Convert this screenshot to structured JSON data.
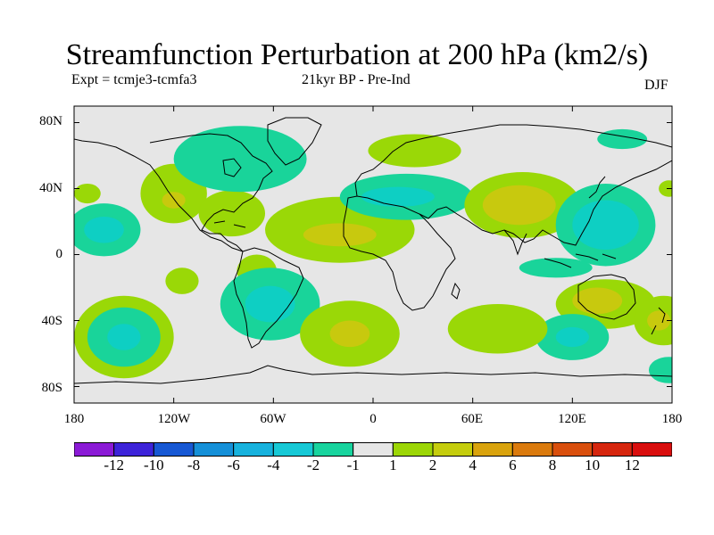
{
  "title": "Streamfunction Perturbation at 200 hPa (km2/s)",
  "subtitle_left": "Expt = tcmje3-tcmfa3",
  "subtitle_center": "21kyr BP - Pre-Ind",
  "season": "DJF",
  "colors": {
    "ocean_background": "#e6e6e6",
    "coastline": "#000000",
    "positive_2_4": "#9ad807",
    "positive_4_6": "#c8c90e",
    "negative_2_4": "#0ecfc3",
    "negative_1_2": "#19d49a"
  },
  "map": {
    "projection": "cylindrical-equidistant",
    "lat_ticks": [
      "80N",
      "40N",
      "0",
      "40S",
      "80S"
    ],
    "lon_ticks": [
      "180",
      "120W",
      "60W",
      "0",
      "60E",
      "120E",
      "180"
    ]
  },
  "colorbar": {
    "labels": [
      "-12",
      "-10",
      "-8",
      "-6",
      "-4",
      "-2",
      "-1",
      "1",
      "2",
      "4",
      "6",
      "8",
      "10",
      "12"
    ],
    "colors": [
      "#8b1ad6",
      "#3d23d9",
      "#1758d4",
      "#1590d8",
      "#17b2dd",
      "#17c9d6",
      "#18d49e",
      "#e6e6e6",
      "#9cd606",
      "#c5cd0d",
      "#d9a30d",
      "#da7a0d",
      "#d94f0d",
      "#d6260e",
      "#d90e0e"
    ]
  },
  "contour_regions": [
    {
      "level": "pos",
      "center": [
        -172,
        37
      ],
      "radius": [
        8,
        6
      ]
    },
    {
      "level": "neg",
      "center": [
        -162,
        15
      ],
      "radius": [
        22,
        16
      ]
    },
    {
      "level": "neg2",
      "center": [
        -162,
        15
      ],
      "radius": [
        12,
        8
      ]
    },
    {
      "level": "pos",
      "center": [
        -120,
        37
      ],
      "radius": [
        20,
        18
      ]
    },
    {
      "level": "pos2",
      "center": [
        -120,
        33
      ],
      "radius": [
        7,
        5
      ]
    },
    {
      "level": "pos",
      "center": [
        -85,
        25
      ],
      "radius": [
        20,
        14
      ]
    },
    {
      "level": "neg",
      "center": [
        -80,
        58
      ],
      "radius": [
        40,
        20
      ]
    },
    {
      "level": "neg",
      "center": [
        -82,
        57
      ],
      "radius": [
        8,
        6
      ]
    },
    {
      "level": "pos",
      "center": [
        -70,
        -10
      ],
      "radius": [
        12,
        10
      ]
    },
    {
      "level": "neg",
      "center": [
        -62,
        -30
      ],
      "radius": [
        30,
        22
      ]
    },
    {
      "level": "neg2",
      "center": [
        -62,
        -30
      ],
      "radius": [
        15,
        11
      ]
    },
    {
      "level": "pos",
      "center": [
        -20,
        15
      ],
      "radius": [
        45,
        20
      ]
    },
    {
      "level": "pos2",
      "center": [
        -20,
        12
      ],
      "radius": [
        22,
        7
      ]
    },
    {
      "level": "pos",
      "center": [
        -14,
        -48
      ],
      "radius": [
        30,
        20
      ]
    },
    {
      "level": "pos2",
      "center": [
        -14,
        -48
      ],
      "radius": [
        12,
        8
      ]
    },
    {
      "level": "pos",
      "center": [
        -150,
        -50
      ],
      "radius": [
        30,
        25
      ]
    },
    {
      "level": "neg",
      "center": [
        -150,
        -50
      ],
      "radius": [
        22,
        18
      ]
    },
    {
      "level": "neg2",
      "center": [
        -150,
        -50
      ],
      "radius": [
        10,
        8
      ]
    },
    {
      "level": "pos",
      "center": [
        -115,
        -16
      ],
      "radius": [
        10,
        8
      ]
    },
    {
      "level": "pos",
      "center": [
        25,
        63
      ],
      "radius": [
        28,
        10
      ]
    },
    {
      "level": "neg",
      "center": [
        20,
        35
      ],
      "radius": [
        40,
        14
      ]
    },
    {
      "level": "neg2",
      "center": [
        15,
        35
      ],
      "radius": [
        22,
        6
      ]
    },
    {
      "level": "pos",
      "center": [
        90,
        30
      ],
      "radius": [
        35,
        20
      ]
    },
    {
      "level": "pos2",
      "center": [
        88,
        30
      ],
      "radius": [
        22,
        12
      ]
    },
    {
      "level": "neg",
      "center": [
        140,
        18
      ],
      "radius": [
        30,
        25
      ]
    },
    {
      "level": "neg2",
      "center": [
        140,
        18
      ],
      "radius": [
        20,
        15
      ]
    },
    {
      "level": "neg",
      "center": [
        110,
        -8
      ],
      "radius": [
        22,
        6
      ]
    },
    {
      "level": "pos",
      "center": [
        140,
        -30
      ],
      "radius": [
        30,
        15
      ]
    },
    {
      "level": "pos2",
      "center": [
        135,
        -28
      ],
      "radius": [
        15,
        8
      ]
    },
    {
      "level": "neg",
      "center": [
        120,
        -50
      ],
      "radius": [
        22,
        14
      ]
    },
    {
      "level": "neg2",
      "center": [
        120,
        -50
      ],
      "radius": [
        10,
        6
      ]
    },
    {
      "level": "pos",
      "center": [
        75,
        -45
      ],
      "radius": [
        30,
        15
      ]
    },
    {
      "level": "pos",
      "center": [
        175,
        -40
      ],
      "radius": [
        18,
        15
      ]
    },
    {
      "level": "pos2",
      "center": [
        172,
        -40
      ],
      "radius": [
        7,
        6
      ]
    },
    {
      "level": "neg",
      "center": [
        178,
        -70
      ],
      "radius": [
        12,
        8
      ]
    },
    {
      "level": "pos",
      "center": [
        178,
        40
      ],
      "radius": [
        6,
        5
      ]
    },
    {
      "level": "neg",
      "center": [
        150,
        70
      ],
      "radius": [
        15,
        6
      ]
    }
  ]
}
